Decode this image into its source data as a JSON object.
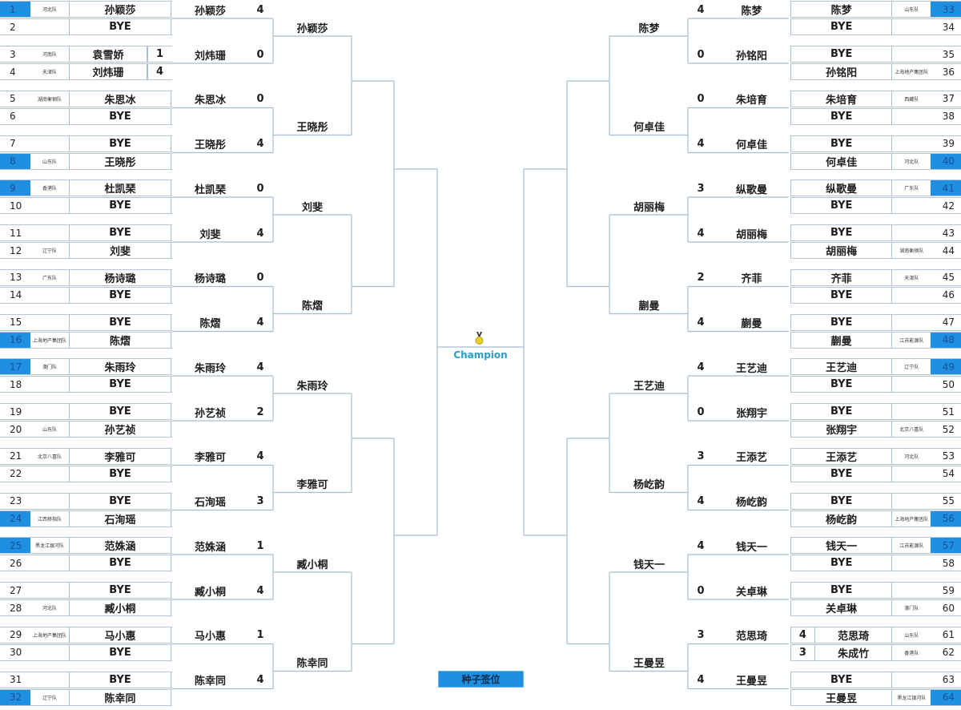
{
  "center": {
    "champion_label": "Champion",
    "seed_button": "种子签位",
    "medal_icon": "medal-icon"
  },
  "colors": {
    "seed": "#1e8fe1",
    "lines": "#a9bccf",
    "champion": "#2a9ec2"
  },
  "halves": [
    {
      "side": "left",
      "blocks": [
        {
          "slots": [
            {
              "no": "1",
              "seed": true,
              "team": "河北队",
              "name": "孙颖莎"
            },
            {
              "no": "2",
              "team": "",
              "name": "BYE"
            },
            {
              "no": "3",
              "team": "河南队",
              "name": "袁雪娇",
              "score": "1"
            },
            {
              "no": "4",
              "team": "天津队",
              "name": "刘炜珊",
              "score": "4"
            }
          ],
          "r1": [
            {
              "name": "孙颖莎",
              "score": "4"
            },
            {
              "name": "刘炜珊",
              "score": "0"
            }
          ],
          "r2": "孙颖莎"
        },
        {
          "slots": [
            {
              "no": "5",
              "team": "湖南衡钢队",
              "name": "朱思冰"
            },
            {
              "no": "6",
              "team": "",
              "name": "BYE"
            },
            {
              "no": "7",
              "team": "",
              "name": "BYE"
            },
            {
              "no": "8",
              "seed": true,
              "team": "山东队",
              "name": "王晓彤"
            }
          ],
          "r1": [
            {
              "name": "朱思冰",
              "score": "0"
            },
            {
              "name": "王晓彤",
              "score": "4"
            }
          ],
          "r2": "王晓彤"
        },
        {
          "slots": [
            {
              "no": "9",
              "seed": true,
              "team": "香港队",
              "name": "杜凯琹"
            },
            {
              "no": "10",
              "team": "",
              "name": "BYE"
            },
            {
              "no": "11",
              "team": "",
              "name": "BYE"
            },
            {
              "no": "12",
              "team": "辽宁队",
              "name": "刘斐"
            }
          ],
          "r1": [
            {
              "name": "杜凯琹",
              "score": "0"
            },
            {
              "name": "刘斐",
              "score": "4"
            }
          ],
          "r2": "刘斐"
        },
        {
          "slots": [
            {
              "no": "13",
              "team": "广东队",
              "name": "杨诗璐"
            },
            {
              "no": "14",
              "team": "",
              "name": "BYE"
            },
            {
              "no": "15",
              "team": "",
              "name": "BYE"
            },
            {
              "no": "16",
              "seed": true,
              "team": "上海地产集团队",
              "name": "陈熠"
            }
          ],
          "r1": [
            {
              "name": "杨诗璐",
              "score": "0"
            },
            {
              "name": "陈熠",
              "score": "4"
            }
          ],
          "r2": "陈熠"
        },
        {
          "slots": [
            {
              "no": "17",
              "seed": true,
              "team": "澳门队",
              "name": "朱雨玲"
            },
            {
              "no": "18",
              "team": "",
              "name": "BYE"
            },
            {
              "no": "19",
              "team": "",
              "name": "BYE"
            },
            {
              "no": "20",
              "team": "山东队",
              "name": "孙艺祯"
            }
          ],
          "r1": [
            {
              "name": "朱雨玲",
              "score": "4"
            },
            {
              "name": "孙艺祯",
              "score": "2"
            }
          ],
          "r2": "朱雨玲"
        },
        {
          "slots": [
            {
              "no": "21",
              "team": "北京八喜队",
              "name": "李雅可"
            },
            {
              "no": "22",
              "team": "",
              "name": "BYE"
            },
            {
              "no": "23",
              "team": "",
              "name": "BYE"
            },
            {
              "no": "24",
              "seed": true,
              "team": "江西移指队",
              "name": "石洵瑶"
            }
          ],
          "r1": [
            {
              "name": "李雅可",
              "score": "4"
            },
            {
              "name": "石洵瑶",
              "score": "3"
            }
          ],
          "r2": "李雅可"
        },
        {
          "slots": [
            {
              "no": "25",
              "seed": true,
              "team": "黑龙江银河队",
              "name": "范姝涵"
            },
            {
              "no": "26",
              "team": "",
              "name": "BYE"
            },
            {
              "no": "27",
              "team": "",
              "name": "BYE"
            },
            {
              "no": "28",
              "team": "河北队",
              "name": "臧小桐"
            }
          ],
          "r1": [
            {
              "name": "范姝涵",
              "score": "1"
            },
            {
              "name": "臧小桐",
              "score": "4"
            }
          ],
          "r2": "臧小桐"
        },
        {
          "slots": [
            {
              "no": "29",
              "team": "上海地产集团队",
              "name": "马小惠"
            },
            {
              "no": "30",
              "team": "",
              "name": "BYE"
            },
            {
              "no": "31",
              "team": "",
              "name": "BYE"
            },
            {
              "no": "32",
              "seed": true,
              "team": "辽宁队",
              "name": "陈幸同"
            }
          ],
          "r1": [
            {
              "name": "马小惠",
              "score": "1"
            },
            {
              "name": "陈幸同",
              "score": "4"
            }
          ],
          "r2": "陈幸同"
        }
      ]
    },
    {
      "side": "right",
      "blocks": [
        {
          "slots": [
            {
              "no": "33",
              "seed": true,
              "team": "山东队",
              "name": "陈梦"
            },
            {
              "no": "34",
              "team": "",
              "name": "BYE"
            },
            {
              "no": "35",
              "team": "",
              "name": "BYE"
            },
            {
              "no": "36",
              "team": "上海地产集团队",
              "name": "孙铭阳"
            }
          ],
          "r1": [
            {
              "name": "陈梦",
              "score": "4"
            },
            {
              "name": "孙铭阳",
              "score": "0"
            }
          ],
          "r2": "陈梦"
        },
        {
          "slots": [
            {
              "no": "37",
              "team": "西藏队",
              "name": "朱培育"
            },
            {
              "no": "38",
              "team": "",
              "name": "BYE"
            },
            {
              "no": "39",
              "team": "",
              "name": "BYE"
            },
            {
              "no": "40",
              "seed": true,
              "team": "河北队",
              "name": "何卓佳"
            }
          ],
          "r1": [
            {
              "name": "朱培育",
              "score": "0"
            },
            {
              "name": "何卓佳",
              "score": "4"
            }
          ],
          "r2": "何卓佳"
        },
        {
          "slots": [
            {
              "no": "41",
              "seed": true,
              "team": "广东队",
              "name": "纵歌曼"
            },
            {
              "no": "42",
              "team": "",
              "name": "BYE"
            },
            {
              "no": "43",
              "team": "",
              "name": "BYE"
            },
            {
              "no": "44",
              "team": "湖南衡钢队",
              "name": "胡丽梅"
            }
          ],
          "r1": [
            {
              "name": "纵歌曼",
              "score": "3"
            },
            {
              "name": "胡丽梅",
              "score": "4"
            }
          ],
          "r2": "胡丽梅"
        },
        {
          "slots": [
            {
              "no": "45",
              "team": "天津队",
              "name": "齐菲"
            },
            {
              "no": "46",
              "team": "",
              "name": "BYE"
            },
            {
              "no": "47",
              "team": "",
              "name": "BYE"
            },
            {
              "no": "48",
              "seed": true,
              "team": "江苏能源队",
              "name": "蒯曼"
            }
          ],
          "r1": [
            {
              "name": "齐菲",
              "score": "2"
            },
            {
              "name": "蒯曼",
              "score": "4"
            }
          ],
          "r2": "蒯曼"
        },
        {
          "slots": [
            {
              "no": "49",
              "seed": true,
              "team": "辽宁队",
              "name": "王艺迪"
            },
            {
              "no": "50",
              "team": "",
              "name": "BYE"
            },
            {
              "no": "51",
              "team": "",
              "name": "BYE"
            },
            {
              "no": "52",
              "team": "北京八喜队",
              "name": "张翔宇"
            }
          ],
          "r1": [
            {
              "name": "王艺迪",
              "score": "4"
            },
            {
              "name": "张翔宇",
              "score": "0"
            }
          ],
          "r2": "王艺迪"
        },
        {
          "slots": [
            {
              "no": "53",
              "team": "河北队",
              "name": "王添艺"
            },
            {
              "no": "54",
              "team": "",
              "name": "BYE"
            },
            {
              "no": "55",
              "team": "",
              "name": "BYE"
            },
            {
              "no": "56",
              "seed": true,
              "team": "上海地产集团队",
              "name": "杨屹韵"
            }
          ],
          "r1": [
            {
              "name": "王添艺",
              "score": "3"
            },
            {
              "name": "杨屹韵",
              "score": "4"
            }
          ],
          "r2": "杨屹韵"
        },
        {
          "slots": [
            {
              "no": "57",
              "seed": true,
              "team": "江苏能源队",
              "name": "钱天一"
            },
            {
              "no": "58",
              "team": "",
              "name": "BYE"
            },
            {
              "no": "59",
              "team": "",
              "name": "BYE"
            },
            {
              "no": "60",
              "team": "澳门队",
              "name": "关卓琳"
            }
          ],
          "r1": [
            {
              "name": "钱天一",
              "score": "4"
            },
            {
              "name": "关卓琳",
              "score": "0"
            }
          ],
          "r2": "钱天一"
        },
        {
          "slots": [
            {
              "no": "61",
              "team": "山东队",
              "name": "范思琦",
              "score": "4"
            },
            {
              "no": "62",
              "team": "香港队",
              "name": "朱成竹",
              "score": "3"
            },
            {
              "no": "63",
              "team": "",
              "name": "BYE"
            },
            {
              "no": "64",
              "seed": true,
              "team": "黑龙江银河队",
              "name": "王曼昱"
            }
          ],
          "r1": [
            {
              "name": "范思琦",
              "score": "3"
            },
            {
              "name": "王曼昱",
              "score": "4"
            }
          ],
          "r2": "王曼昱"
        }
      ]
    }
  ]
}
